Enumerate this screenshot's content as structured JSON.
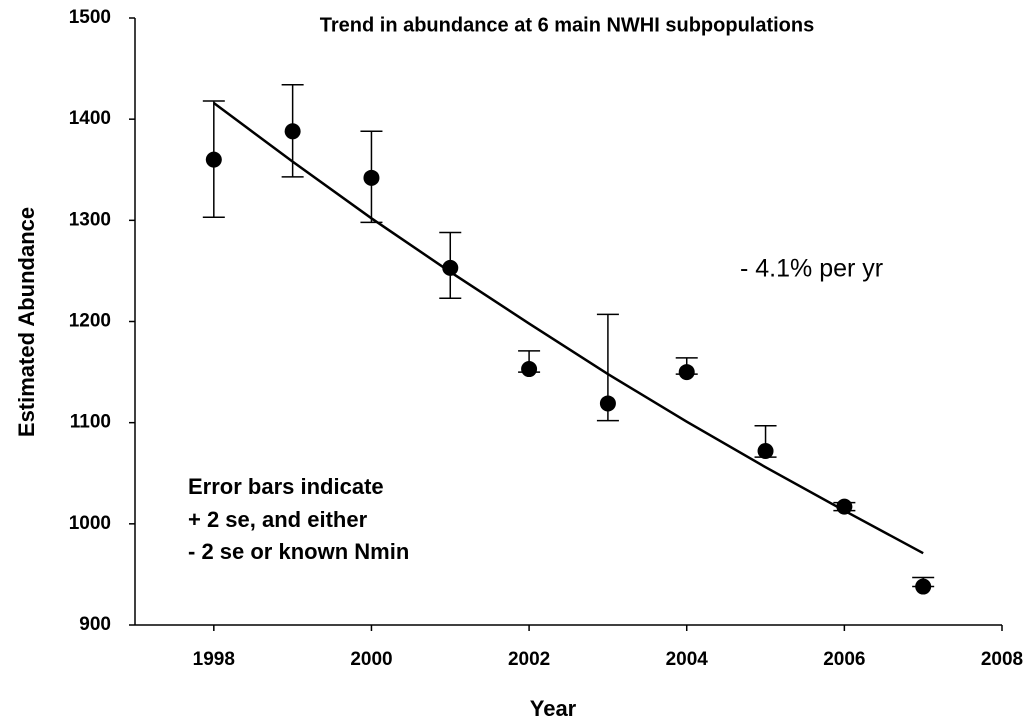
{
  "chart_data": {
    "type": "scatter",
    "title": "Trend in abundance at 6 main NWHI subpopulations",
    "x_label": "Year",
    "y_label": "Estimated Abundance",
    "x": [
      1998,
      1999,
      2000,
      2001,
      2002,
      2003,
      2004,
      2005,
      2006,
      2007
    ],
    "values": [
      1360,
      1388,
      1342,
      1253,
      1153,
      1119,
      1150,
      1072,
      1017,
      938
    ],
    "upper": [
      1418,
      1434,
      1388,
      1288,
      1171,
      1207,
      1164,
      1097,
      1021,
      947
    ],
    "lower": [
      1303,
      1343,
      1298,
      1223,
      1150,
      1102,
      1148,
      1066,
      1013,
      938
    ],
    "trend": [
      1416,
      1358,
      1302,
      1249,
      1198,
      1148,
      1101,
      1056,
      1013,
      971
    ],
    "color": "#000000",
    "xlim": [
      1997,
      2008
    ],
    "xticks": [
      1998,
      2000,
      2002,
      2004,
      2006,
      2008
    ],
    "ylim": [
      900,
      1500
    ],
    "yticks": [
      900,
      1000,
      1100,
      1200,
      1300,
      1400,
      1500
    ],
    "grid": false,
    "annotations": [
      "- 4.1% per yr",
      "Error bars indicate",
      "+ 2 se, and either",
      "- 2 se or known Nmin"
    ]
  }
}
